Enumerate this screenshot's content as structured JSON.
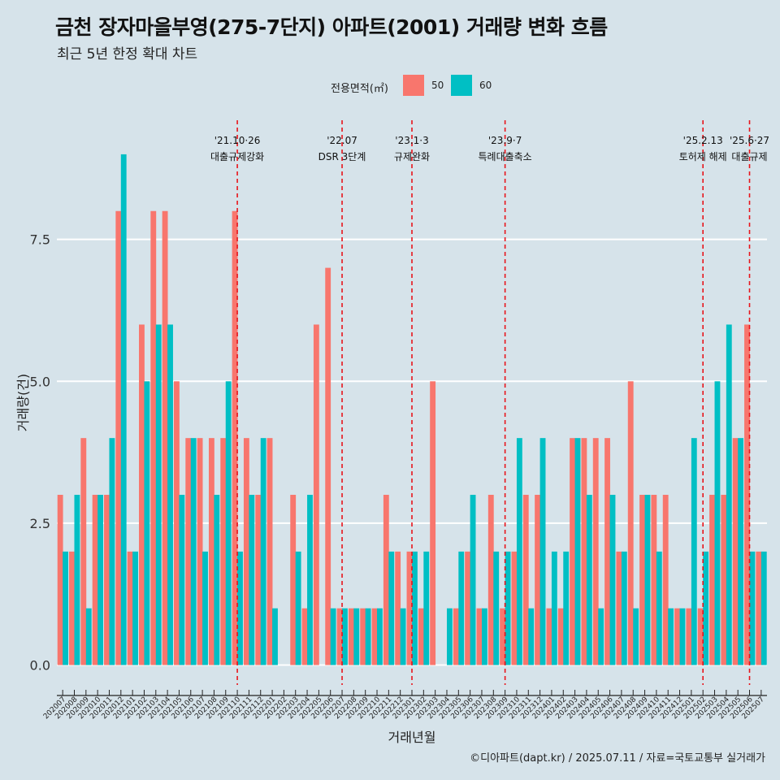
{
  "title": "금천 장자마을부영(275-7단지) 아파트(2001) 거래량 변화 흐름",
  "subtitle": "최근 5년 한정 확대 차트",
  "caption": "©디아파트(dapt.kr) / 2025.07.11 / 자료=국토교통부 실거래가",
  "legend": {
    "title": "전용면적(㎡)",
    "items": [
      {
        "label": "50",
        "color": "#f8766d"
      },
      {
        "label": "60",
        "color": "#00bfc4"
      }
    ]
  },
  "chart_data": {
    "type": "bar",
    "xlabel": "거래년월",
    "ylabel": "거래량(건)",
    "ylim": [
      -0.35,
      9.6
    ],
    "yticks": [
      0.0,
      2.5,
      5.0,
      7.5
    ],
    "ytick_labels": [
      "0.0",
      "2.5",
      "5.0",
      "7.5"
    ],
    "categories": [
      "202007",
      "202008",
      "202009",
      "202010",
      "202011",
      "202012",
      "202101",
      "202102",
      "202103",
      "202104",
      "202105",
      "202106",
      "202107",
      "202108",
      "202109",
      "202110",
      "202111",
      "202112",
      "202201",
      "202202",
      "202203",
      "202204",
      "202205",
      "202206",
      "202207",
      "202208",
      "202209",
      "202210",
      "202211",
      "202212",
      "202301",
      "202302",
      "202303",
      "202304",
      "202305",
      "202306",
      "202307",
      "202308",
      "202309",
      "202310",
      "202311",
      "202312",
      "202401",
      "202402",
      "202403",
      "202404",
      "202405",
      "202406",
      "202407",
      "202408",
      "202409",
      "202410",
      "202411",
      "202412",
      "202501",
      "202502",
      "202503",
      "202504",
      "202505",
      "202506",
      "202507"
    ],
    "series": [
      {
        "name": "50",
        "color": "#f8766d",
        "values": [
          3,
          2,
          4,
          3,
          3,
          8,
          2,
          6,
          8,
          8,
          5,
          4,
          4,
          4,
          4,
          8,
          4,
          3,
          4,
          0,
          3,
          1,
          6,
          7,
          1,
          1,
          1,
          1,
          3,
          2,
          2,
          1,
          5,
          0,
          1,
          2,
          1,
          3,
          1,
          2,
          3,
          3,
          1,
          1,
          4,
          4,
          4,
          4,
          2,
          5,
          3,
          3,
          3,
          1,
          1,
          1,
          3,
          3,
          4,
          6,
          2
        ]
      },
      {
        "name": "60",
        "color": "#00bfc4",
        "values": [
          2,
          3,
          1,
          3,
          4,
          9,
          2,
          5,
          6,
          6,
          3,
          4,
          2,
          3,
          5,
          2,
          3,
          4,
          1,
          0,
          2,
          3,
          0,
          1,
          1,
          1,
          1,
          1,
          2,
          1,
          2,
          2,
          0,
          1,
          2,
          3,
          1,
          2,
          2,
          4,
          1,
          4,
          2,
          2,
          4,
          3,
          1,
          3,
          2,
          1,
          3,
          2,
          1,
          1,
          4,
          2,
          5,
          6,
          4,
          2,
          2
        ]
      }
    ],
    "events": [
      {
        "index": 15,
        "date": "'21.10·26",
        "label": "대출규제강화"
      },
      {
        "index": 24,
        "date": "'22.07",
        "label": "DSR 3단계"
      },
      {
        "index": 30,
        "date": "'23.1·3",
        "label": "규제완화"
      },
      {
        "index": 38,
        "date": "'23.9·7",
        "label": "특례대출축소"
      },
      {
        "index": 55,
        "date": "'25.2.13",
        "label": "토허제 해제"
      },
      {
        "index": 59,
        "date": "'25.6·27",
        "label": "대출규제"
      }
    ]
  }
}
